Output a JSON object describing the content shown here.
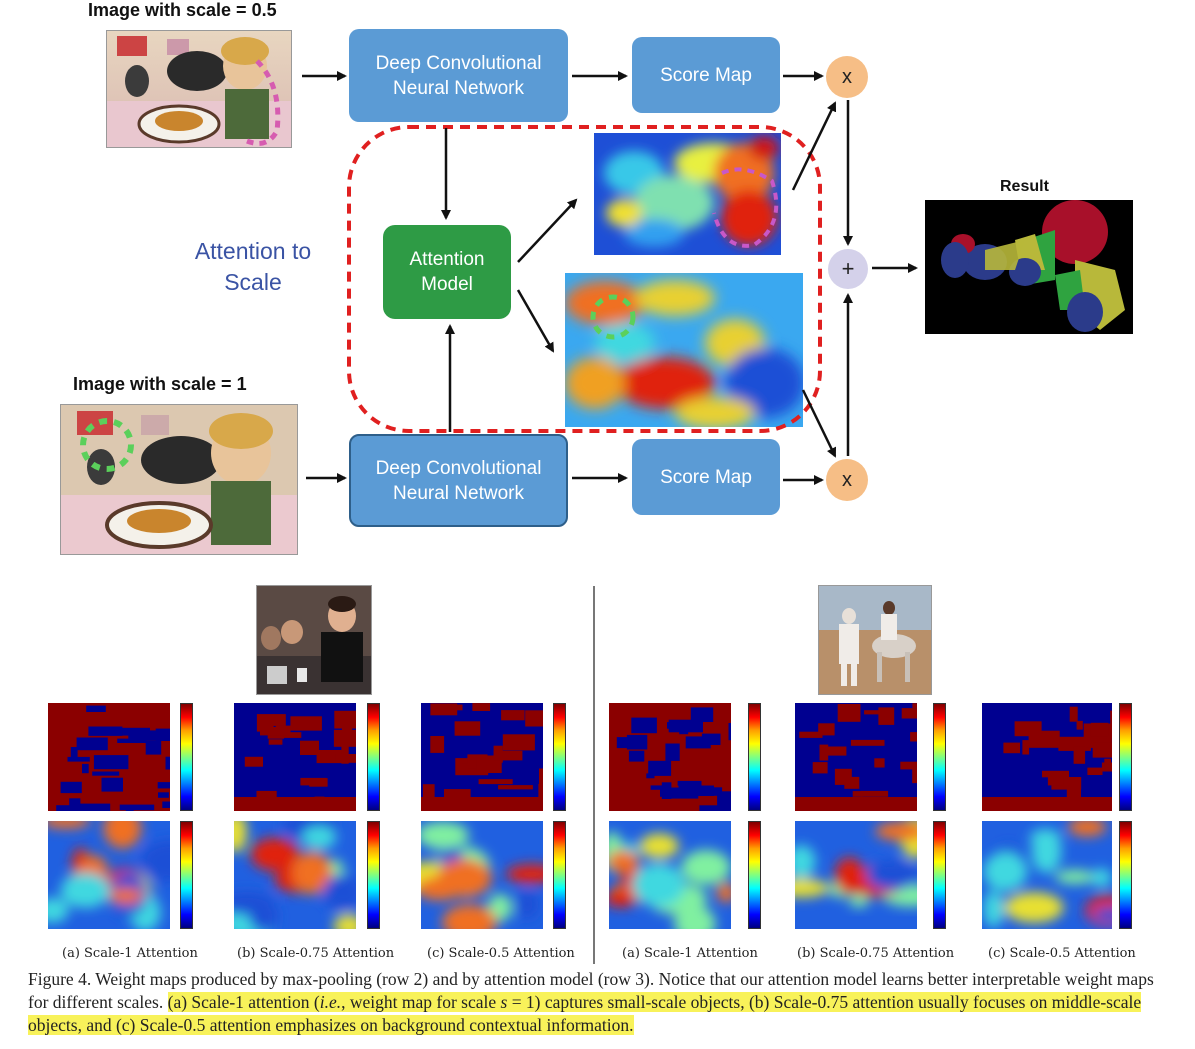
{
  "top_diagram": {
    "label_scale_half": "Image with scale = 0.5",
    "label_scale_one": "Image with scale = 1",
    "dcnn_label": "Deep Convolutional Neural Network",
    "score_map_label": "Score Map",
    "attention_model_label": "Attention Model",
    "attention_to_scale_label": "Attention to Scale",
    "multiply_symbol": "x",
    "plus_symbol": "+",
    "result_label": "Result"
  },
  "panel_captions": [
    "(a) Scale-1 Attention",
    "(b) Scale-0.75 Attention",
    "(c) Scale-0.5 Attention",
    "(a) Scale-1 Attention",
    "(b) Scale-0.75 Attention",
    "(c) Scale-0.5 Attention"
  ],
  "figure_caption": {
    "plain_part": "Figure 4. Weight maps produced by max-pooling (row 2) and by attention model (row 3). Notice that our attention model learns better interpretable weight maps for different scales. ",
    "highlight_part_1": "(a) Scale-1 attention (",
    "highlight_ie": "i.e.",
    "highlight_part_2": ", weight map for scale ",
    "highlight_s": "s",
    "highlight_part_3": " = 1) captures small-scale objects, (b) Scale-0.75 attention usually focuses on middle-scale objects, and (c) Scale-0.5 attention emphasizes on background contextual information."
  },
  "colors": {
    "box_blue": "#5b9bd5",
    "attention_green": "#2e9b45",
    "dashed_red": "#e02020",
    "multiply_orange": "#f6be86",
    "plus_lavender": "#d4d1ea",
    "attention_text_blue": "#3a53a4",
    "highlight_yellow": "#f8f25a"
  }
}
